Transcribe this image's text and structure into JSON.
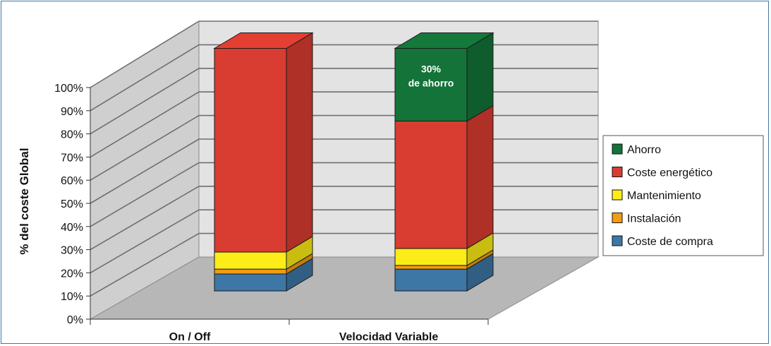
{
  "chart_data": {
    "type": "bar",
    "stacked": true,
    "three_d": true,
    "categories": [
      "On / Off",
      "Velocidad Variable"
    ],
    "series": [
      {
        "name": "Coste de compra",
        "color": "#3d77a5",
        "values": [
          7,
          9
        ]
      },
      {
        "name": "Instalación",
        "color": "#f39c12",
        "values": [
          2,
          1.5
        ]
      },
      {
        "name": "Mantenimiento",
        "color": "#fcec17",
        "values": [
          7,
          7
        ]
      },
      {
        "name": "Coste energético",
        "color": "#d93c30",
        "values": [
          84,
          52.5
        ]
      },
      {
        "name": "Ahorro",
        "color": "#137338",
        "values": [
          0,
          30
        ]
      }
    ],
    "ylabel": "% del coste Global",
    "ylim": [
      0,
      100
    ],
    "yticks": [
      "0%",
      "10%",
      "20%",
      "30%",
      "40%",
      "50%",
      "60%",
      "70%",
      "80%",
      "90%",
      "100%"
    ],
    "annotation": {
      "line1": "30%",
      "line2": "de ahorro"
    },
    "legend_position": "right",
    "grid": true
  }
}
